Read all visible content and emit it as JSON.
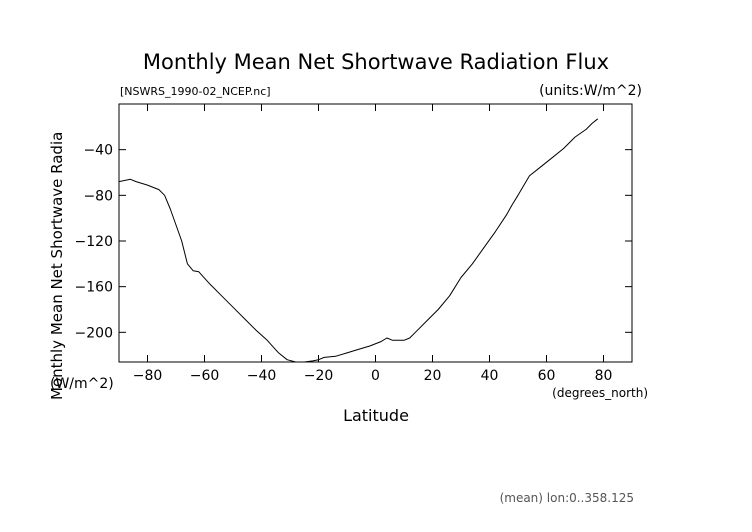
{
  "chart_data": {
    "type": "line",
    "title": "Monthly Mean Net Shortwave Radiation Flux",
    "source_label": "[NSWRS_1990-02_NCEP.nc]",
    "units_label": "(units:W/m^2)",
    "ylabel": "Monthly Mean Net Shortwave Radia",
    "ylabel_units": "(W/m^2)",
    "xlabel": "Latitude",
    "xlabel_units": "(degrees_north)",
    "footer": "(mean) lon:0..358.125",
    "xlim": [
      -90,
      90
    ],
    "ylim": [
      -226,
      0
    ],
    "x_ticks": [
      -80,
      -60,
      -40,
      -20,
      0,
      20,
      40,
      60,
      80
    ],
    "y_ticks": [
      -40,
      -80,
      -120,
      -160,
      -200
    ],
    "x": [
      -90,
      -86,
      -84,
      -80,
      -76,
      -74,
      -72,
      -70,
      -68,
      -66,
      -64,
      -62,
      -58,
      -54,
      -50,
      -46,
      -42,
      -38,
      -34,
      -31,
      -28,
      -25,
      -22,
      -20,
      -18,
      -14,
      -10,
      -6,
      -2,
      2,
      4,
      6,
      8,
      10,
      12,
      14,
      18,
      22,
      26,
      30,
      34,
      38,
      42,
      46,
      48,
      50,
      54,
      58,
      62,
      66,
      70,
      74,
      76,
      78
    ],
    "y": [
      -68,
      -66,
      -68,
      -71,
      -75,
      -80,
      -92,
      -106,
      -120,
      -140,
      -146,
      -147,
      -158,
      -168,
      -178,
      -188,
      -198,
      -207,
      -218,
      -224,
      -226,
      -226,
      -225,
      -224,
      -222,
      -221,
      -218,
      -215,
      -212,
      -208,
      -205,
      -207,
      -207,
      -207,
      -205,
      -200,
      -190,
      -180,
      -168,
      -152,
      -140,
      -126,
      -112,
      -97,
      -88,
      -80,
      -63,
      -55,
      -47,
      -39,
      -29,
      -22,
      -17,
      -13
    ]
  }
}
